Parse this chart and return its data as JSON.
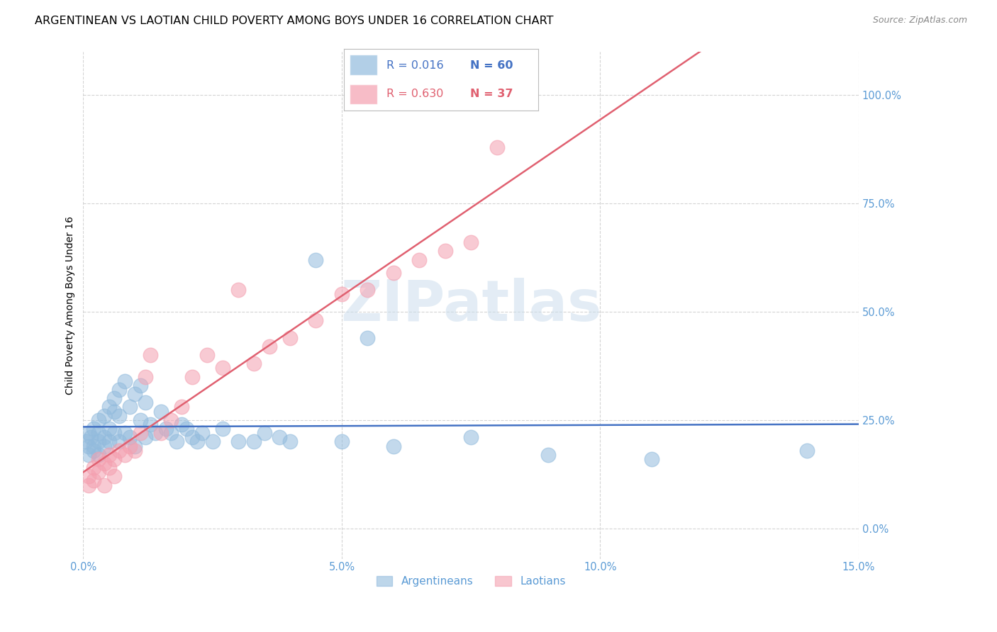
{
  "title": "ARGENTINEAN VS LAOTIAN CHILD POVERTY AMONG BOYS UNDER 16 CORRELATION CHART",
  "source": "Source: ZipAtlas.com",
  "ylabel": "Child Poverty Among Boys Under 16",
  "background_color": "#ffffff",
  "watermark_text": "ZIPatlas",
  "legend_r1": "R = 0.016",
  "legend_n1": "N = 60",
  "legend_r2": "R = 0.630",
  "legend_n2": "N = 37",
  "argentinean_color": "#92bbdd",
  "laotian_color": "#f4a0b0",
  "line_arg_color": "#4472c4",
  "line_lao_color": "#e06070",
  "tick_color": "#5b9bd5",
  "grid_color": "#d0d0d0",
  "xlim": [
    0.0,
    0.15
  ],
  "ylim": [
    -0.07,
    1.1
  ],
  "yticks": [
    0.0,
    0.25,
    0.5,
    0.75,
    1.0
  ],
  "ytick_labels": [
    "0.0%",
    "25.0%",
    "50.0%",
    "75.0%",
    "100.0%"
  ],
  "xticks": [
    0.0,
    0.05,
    0.1,
    0.15
  ],
  "xtick_labels": [
    "0.0%",
    "5.0%",
    "10.0%",
    "15.0%"
  ],
  "arg_x": [
    0.0005,
    0.001,
    0.001,
    0.001,
    0.0015,
    0.002,
    0.002,
    0.002,
    0.003,
    0.003,
    0.003,
    0.003,
    0.004,
    0.004,
    0.004,
    0.005,
    0.005,
    0.005,
    0.006,
    0.006,
    0.006,
    0.007,
    0.007,
    0.007,
    0.008,
    0.008,
    0.009,
    0.009,
    0.01,
    0.01,
    0.011,
    0.011,
    0.012,
    0.012,
    0.013,
    0.014,
    0.015,
    0.016,
    0.017,
    0.018,
    0.019,
    0.02,
    0.021,
    0.022,
    0.023,
    0.025,
    0.027,
    0.03,
    0.033,
    0.035,
    0.038,
    0.04,
    0.045,
    0.05,
    0.055,
    0.06,
    0.075,
    0.09,
    0.11,
    0.14
  ],
  "arg_y": [
    0.2,
    0.22,
    0.19,
    0.17,
    0.21,
    0.23,
    0.19,
    0.18,
    0.25,
    0.22,
    0.2,
    0.17,
    0.26,
    0.21,
    0.19,
    0.28,
    0.23,
    0.2,
    0.3,
    0.27,
    0.22,
    0.32,
    0.26,
    0.2,
    0.34,
    0.22,
    0.28,
    0.21,
    0.31,
    0.19,
    0.33,
    0.25,
    0.29,
    0.21,
    0.24,
    0.22,
    0.27,
    0.23,
    0.22,
    0.2,
    0.24,
    0.23,
    0.21,
    0.2,
    0.22,
    0.2,
    0.23,
    0.2,
    0.2,
    0.22,
    0.21,
    0.2,
    0.62,
    0.2,
    0.44,
    0.19,
    0.21,
    0.17,
    0.16,
    0.18
  ],
  "lao_x": [
    0.001,
    0.001,
    0.002,
    0.002,
    0.003,
    0.003,
    0.004,
    0.004,
    0.005,
    0.005,
    0.006,
    0.006,
    0.007,
    0.008,
    0.009,
    0.01,
    0.011,
    0.012,
    0.013,
    0.015,
    0.017,
    0.019,
    0.021,
    0.024,
    0.027,
    0.03,
    0.033,
    0.036,
    0.04,
    0.045,
    0.05,
    0.055,
    0.06,
    0.065,
    0.07,
    0.075,
    0.08
  ],
  "lao_y": [
    0.12,
    0.1,
    0.14,
    0.11,
    0.16,
    0.13,
    0.15,
    0.1,
    0.17,
    0.14,
    0.16,
    0.12,
    0.18,
    0.17,
    0.19,
    0.18,
    0.22,
    0.35,
    0.4,
    0.22,
    0.25,
    0.28,
    0.35,
    0.4,
    0.37,
    0.55,
    0.38,
    0.42,
    0.44,
    0.48,
    0.54,
    0.55,
    0.59,
    0.62,
    0.64,
    0.66,
    0.88
  ],
  "title_fontsize": 11.5,
  "axis_label_fontsize": 10,
  "tick_fontsize": 10.5,
  "legend_fontsize": 11.5
}
